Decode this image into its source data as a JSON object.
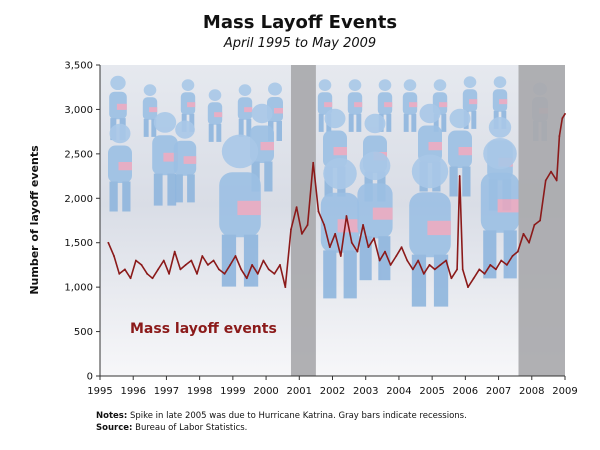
{
  "chart_data": {
    "type": "line",
    "title": "Mass Layoff Events",
    "subtitle": "April 1995 to May 2009",
    "ylabel": "Number of layoff events",
    "xlabel": "",
    "ylim": [
      0,
      3500
    ],
    "xlim": [
      1995,
      2009
    ],
    "yticks": [
      0,
      500,
      1000,
      1500,
      2000,
      2500,
      3000,
      3500
    ],
    "ytick_labels": [
      "0",
      "500",
      "1,000",
      "1,500",
      "2,000",
      "2,500",
      "3,000",
      "3,500"
    ],
    "xticks": [
      1995,
      1996,
      1997,
      1998,
      1999,
      2000,
      2001,
      2002,
      2003,
      2004,
      2005,
      2006,
      2007,
      2008,
      2009
    ],
    "xtick_labels": [
      "1995",
      "1996",
      "1997",
      "1998",
      "1999",
      "2000",
      "2001",
      "2002",
      "2003",
      "2004",
      "2005",
      "2006",
      "2007",
      "2008",
      "2009"
    ],
    "recessions": [
      [
        2000.75,
        2001.5
      ],
      [
        2007.6,
        2009.0
      ]
    ],
    "recession_color": "#a9a9ad",
    "series": [
      {
        "name": "Mass layoff events",
        "color": "#8b1a1a",
        "x": [
          1995.25,
          1995.42,
          1995.58,
          1995.75,
          1995.92,
          1996.08,
          1996.25,
          1996.42,
          1996.58,
          1996.75,
          1996.92,
          1997.08,
          1997.25,
          1997.42,
          1997.58,
          1997.75,
          1997.92,
          1998.08,
          1998.25,
          1998.42,
          1998.58,
          1998.75,
          1998.92,
          1999.08,
          1999.25,
          1999.42,
          1999.58,
          1999.75,
          1999.92,
          2000.08,
          2000.25,
          2000.42,
          2000.58,
          2000.75,
          2000.92,
          2001.08,
          2001.25,
          2001.42,
          2001.58,
          2001.75,
          2001.92,
          2002.08,
          2002.25,
          2002.42,
          2002.58,
          2002.75,
          2002.92,
          2003.08,
          2003.25,
          2003.42,
          2003.58,
          2003.75,
          2003.92,
          2004.08,
          2004.25,
          2004.42,
          2004.58,
          2004.75,
          2004.92,
          2005.08,
          2005.25,
          2005.42,
          2005.58,
          2005.75,
          2005.83,
          2005.92,
          2006.08,
          2006.25,
          2006.42,
          2006.58,
          2006.75,
          2006.92,
          2007.08,
          2007.25,
          2007.42,
          2007.58,
          2007.75,
          2007.92,
          2008.08,
          2008.25,
          2008.42,
          2008.58,
          2008.75,
          2008.83,
          2008.92,
          2009.0
        ],
        "y": [
          1500,
          1350,
          1150,
          1200,
          1100,
          1300,
          1250,
          1150,
          1100,
          1200,
          1300,
          1150,
          1400,
          1200,
          1250,
          1300,
          1150,
          1350,
          1250,
          1300,
          1200,
          1150,
          1250,
          1350,
          1200,
          1100,
          1250,
          1150,
          1300,
          1200,
          1150,
          1250,
          1000,
          1650,
          1900,
          1600,
          1700,
          2400,
          1850,
          1700,
          1450,
          1600,
          1350,
          1800,
          1500,
          1400,
          1700,
          1450,
          1550,
          1300,
          1400,
          1250,
          1350,
          1450,
          1300,
          1200,
          1300,
          1150,
          1250,
          1200,
          1250,
          1300,
          1100,
          1200,
          2250,
          1200,
          1000,
          1100,
          1200,
          1150,
          1250,
          1200,
          1300,
          1250,
          1350,
          1400,
          1600,
          1500,
          1700,
          1750,
          2200,
          2300,
          2200,
          2700,
          2900,
          2950
        ]
      }
    ]
  },
  "notes": {
    "notes_label": "Notes:",
    "notes_text": "Spike in late 2005 was due to Hurricane Katrina. Gray bars indicate recessions.",
    "source_label": "Source:",
    "source_text": "Bureau of Labor Statistics."
  }
}
